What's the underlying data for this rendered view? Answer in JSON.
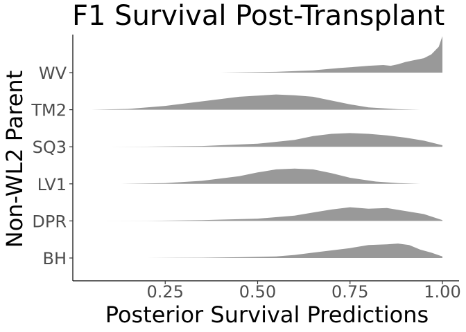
{
  "chart_data": {
    "type": "ridgeline",
    "title": "F1 Survival Post-Transplant",
    "xlabel": "Posterior Survival Predictions",
    "ylabel": "Non-WL2 Parent",
    "xlim": [
      0.0,
      1.0
    ],
    "x_ticks": [
      0.25,
      0.5,
      0.75,
      1.0
    ],
    "x_tick_labels": [
      "0.25",
      "0.50",
      "0.75",
      "1.00"
    ],
    "fill_color": "#999999",
    "grid": false,
    "series": [
      {
        "name": "BH",
        "x": [
          0.2,
          0.35,
          0.45,
          0.55,
          0.6,
          0.65,
          0.7,
          0.75,
          0.8,
          0.85,
          0.88,
          0.91,
          0.94,
          0.97,
          1.0
        ],
        "density": [
          0.0,
          0.02,
          0.05,
          0.1,
          0.2,
          0.35,
          0.5,
          0.65,
          0.85,
          0.9,
          0.95,
          0.85,
          0.55,
          0.35,
          0.1
        ]
      },
      {
        "name": "DPR",
        "x": [
          0.08,
          0.2,
          0.35,
          0.5,
          0.6,
          0.65,
          0.7,
          0.75,
          0.8,
          0.85,
          0.9,
          0.95,
          1.0
        ],
        "density": [
          0.0,
          0.01,
          0.05,
          0.15,
          0.35,
          0.55,
          0.75,
          0.9,
          0.8,
          0.85,
          0.65,
          0.45,
          0.05
        ]
      },
      {
        "name": "LV1",
        "x": [
          0.13,
          0.25,
          0.35,
          0.45,
          0.5,
          0.55,
          0.6,
          0.65,
          0.7,
          0.75,
          0.82,
          0.88,
          0.94
        ],
        "density": [
          0.0,
          0.05,
          0.2,
          0.5,
          0.75,
          0.95,
          1.0,
          0.95,
          0.7,
          0.4,
          0.15,
          0.05,
          0.0
        ]
      },
      {
        "name": "SQ3",
        "x": [
          0.1,
          0.2,
          0.35,
          0.5,
          0.6,
          0.65,
          0.7,
          0.75,
          0.8,
          0.85,
          0.9,
          0.95,
          1.0
        ],
        "density": [
          0.0,
          0.01,
          0.05,
          0.2,
          0.45,
          0.7,
          0.85,
          0.9,
          0.85,
          0.75,
          0.6,
          0.4,
          0.1
        ]
      },
      {
        "name": "TM2",
        "x": [
          0.05,
          0.15,
          0.25,
          0.35,
          0.45,
          0.55,
          0.6,
          0.65,
          0.7,
          0.75,
          0.8,
          0.88,
          0.94
        ],
        "density": [
          0.0,
          0.05,
          0.25,
          0.55,
          0.85,
          1.0,
          0.95,
          0.85,
          0.6,
          0.35,
          0.15,
          0.03,
          0.0
        ]
      },
      {
        "name": "WV",
        "x": [
          0.4,
          0.55,
          0.65,
          0.72,
          0.75,
          0.8,
          0.84,
          0.86,
          0.88,
          0.9,
          0.92,
          0.95,
          0.97,
          0.99,
          1.0
        ],
        "density": [
          0.0,
          0.05,
          0.15,
          0.3,
          0.35,
          0.45,
          0.5,
          0.45,
          0.55,
          0.7,
          0.8,
          0.95,
          1.2,
          1.7,
          2.4
        ]
      }
    ]
  }
}
